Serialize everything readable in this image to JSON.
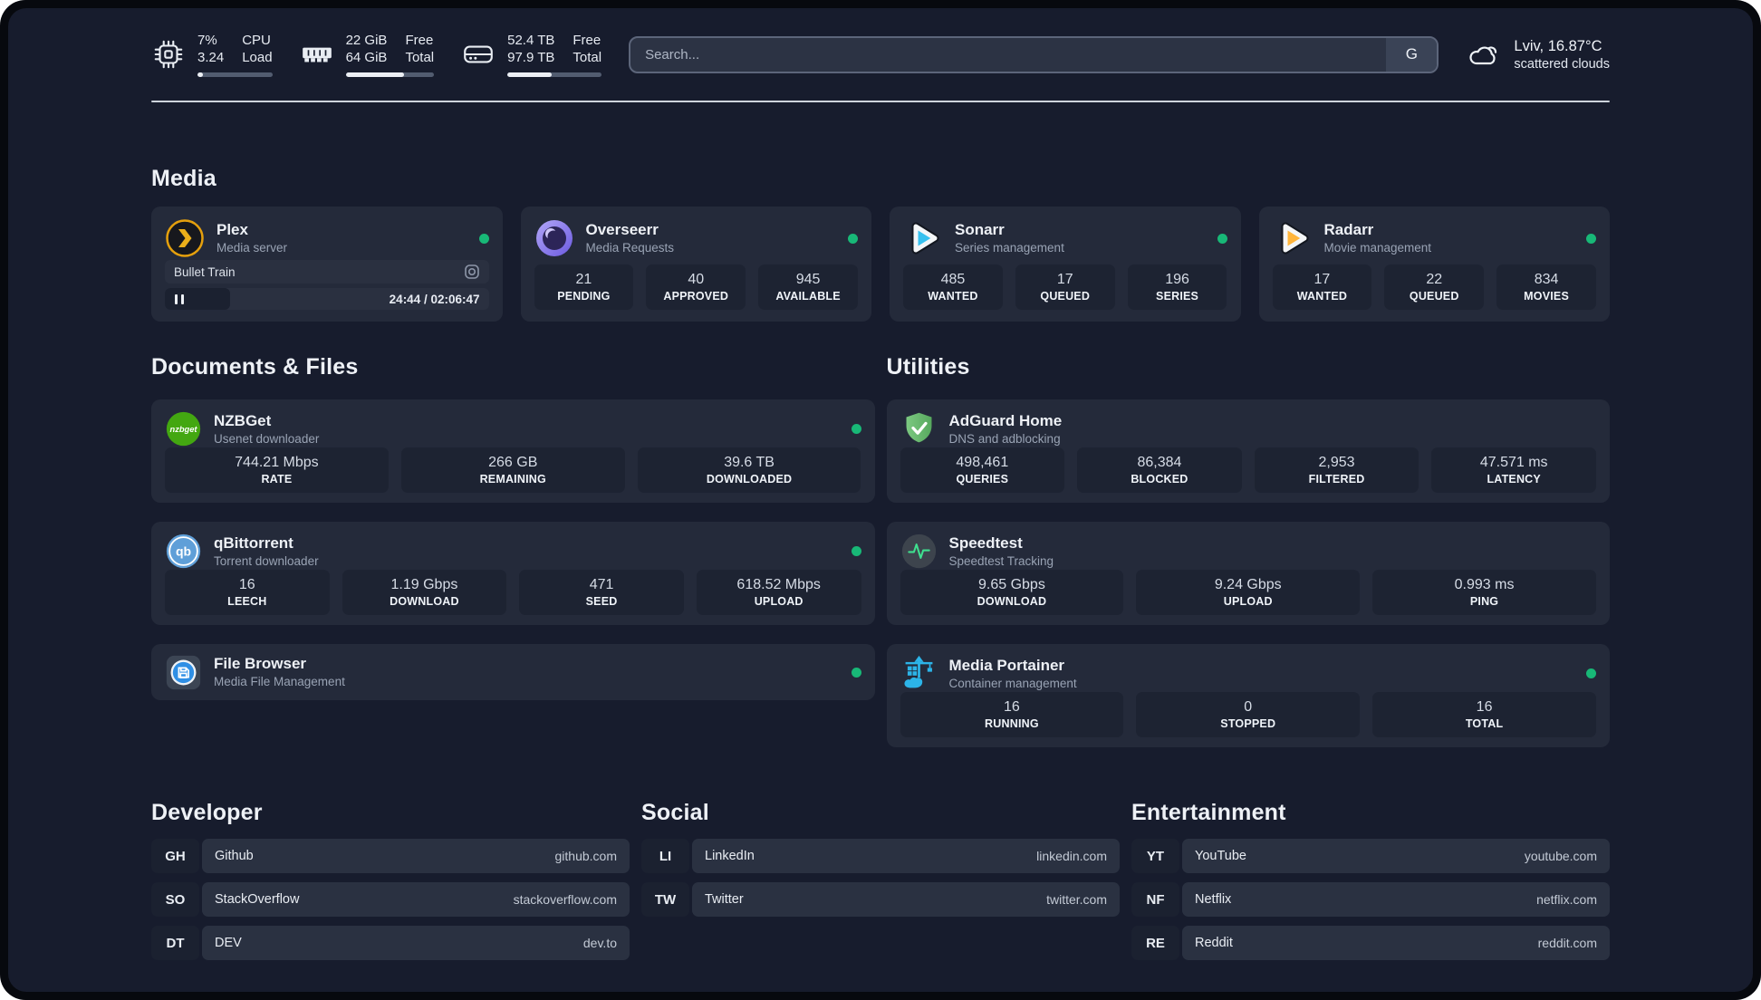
{
  "theme": {
    "online_color": "#18b877",
    "background": "#171c2d",
    "card": "#242a3a"
  },
  "header": {
    "metrics": [
      {
        "icon": "cpu-icon",
        "value_line1": "7%",
        "value_line2": "3.24",
        "label_line1": "CPU",
        "label_line2": "Load",
        "progress_pct": 7
      },
      {
        "icon": "ram-icon",
        "value_line1": "22 GiB",
        "value_line2": "64 GiB",
        "label_line1": "Free",
        "label_line2": "Total",
        "progress_pct": 66
      },
      {
        "icon": "disk-icon",
        "value_line1": "52.4 TB",
        "value_line2": "97.9 TB",
        "label_line1": "Free",
        "label_line2": "Total",
        "progress_pct": 47
      }
    ],
    "search": {
      "placeholder": "Search...",
      "engine_button": "G"
    },
    "weather": {
      "location": "Lviv, 16.87°C",
      "condition": "scattered clouds"
    }
  },
  "media": {
    "title": "Media",
    "plex": {
      "title": "Plex",
      "subtitle": "Media server",
      "online": true,
      "now_playing": {
        "track": "Bullet Train",
        "time_display": "24:44 / 02:06:47",
        "progress_pct": 20
      }
    },
    "overseerr": {
      "title": "Overseerr",
      "subtitle": "Media Requests",
      "online": true,
      "stats": [
        {
          "value": "21",
          "label": "PENDING"
        },
        {
          "value": "40",
          "label": "APPROVED"
        },
        {
          "value": "945",
          "label": "AVAILABLE"
        }
      ]
    },
    "sonarr": {
      "title": "Sonarr",
      "subtitle": "Series management",
      "online": true,
      "stats": [
        {
          "value": "485",
          "label": "WANTED"
        },
        {
          "value": "17",
          "label": "QUEUED"
        },
        {
          "value": "196",
          "label": "SERIES"
        }
      ]
    },
    "radarr": {
      "title": "Radarr",
      "subtitle": "Movie management",
      "online": true,
      "stats": [
        {
          "value": "17",
          "label": "WANTED"
        },
        {
          "value": "22",
          "label": "QUEUED"
        },
        {
          "value": "834",
          "label": "MOVIES"
        }
      ]
    }
  },
  "documents": {
    "title": "Documents & Files",
    "nzbget": {
      "title": "NZBGet",
      "subtitle": "Usenet downloader",
      "online": true,
      "stats": [
        {
          "value": "744.21 Mbps",
          "label": "RATE"
        },
        {
          "value": "266 GB",
          "label": "REMAINING"
        },
        {
          "value": "39.6 TB",
          "label": "DOWNLOADED"
        }
      ]
    },
    "qbittorrent": {
      "title": "qBittorrent",
      "subtitle": "Torrent downloader",
      "online": true,
      "stats": [
        {
          "value": "16",
          "label": "LEECH"
        },
        {
          "value": "1.19 Gbps",
          "label": "DOWNLOAD"
        },
        {
          "value": "471",
          "label": "SEED"
        },
        {
          "value": "618.52 Mbps",
          "label": "UPLOAD"
        }
      ]
    },
    "filebrowser": {
      "title": "File Browser",
      "subtitle": "Media File Management",
      "online": true
    }
  },
  "utilities": {
    "title": "Utilities",
    "adguard": {
      "title": "AdGuard Home",
      "subtitle": "DNS and adblocking",
      "stats": [
        {
          "value": "498,461",
          "label": "QUERIES"
        },
        {
          "value": "86,384",
          "label": "BLOCKED"
        },
        {
          "value": "2,953",
          "label": "FILTERED"
        },
        {
          "value": "47.571 ms",
          "label": "LATENCY"
        }
      ]
    },
    "speedtest": {
      "title": "Speedtest",
      "subtitle": "Speedtest Tracking",
      "stats": [
        {
          "value": "9.65 Gbps",
          "label": "DOWNLOAD"
        },
        {
          "value": "9.24 Gbps",
          "label": "UPLOAD"
        },
        {
          "value": "0.993 ms",
          "label": "PING"
        }
      ]
    },
    "portainer": {
      "title": "Media Portainer",
      "subtitle": "Container management",
      "online": true,
      "stats": [
        {
          "value": "16",
          "label": "RUNNING"
        },
        {
          "value": "0",
          "label": "STOPPED"
        },
        {
          "value": "16",
          "label": "TOTAL"
        }
      ]
    }
  },
  "links": {
    "developer": {
      "title": "Developer",
      "items": [
        {
          "badge": "GH",
          "name": "Github",
          "url": "github.com"
        },
        {
          "badge": "SO",
          "name": "StackOverflow",
          "url": "stackoverflow.com"
        },
        {
          "badge": "DT",
          "name": "DEV",
          "url": "dev.to"
        }
      ]
    },
    "social": {
      "title": "Social",
      "items": [
        {
          "badge": "LI",
          "name": "LinkedIn",
          "url": "linkedin.com"
        },
        {
          "badge": "TW",
          "name": "Twitter",
          "url": "twitter.com"
        }
      ]
    },
    "entertainment": {
      "title": "Entertainment",
      "items": [
        {
          "badge": "YT",
          "name": "YouTube",
          "url": "youtube.com"
        },
        {
          "badge": "NF",
          "name": "Netflix",
          "url": "netflix.com"
        },
        {
          "badge": "RE",
          "name": "Reddit",
          "url": "reddit.com"
        }
      ]
    }
  }
}
